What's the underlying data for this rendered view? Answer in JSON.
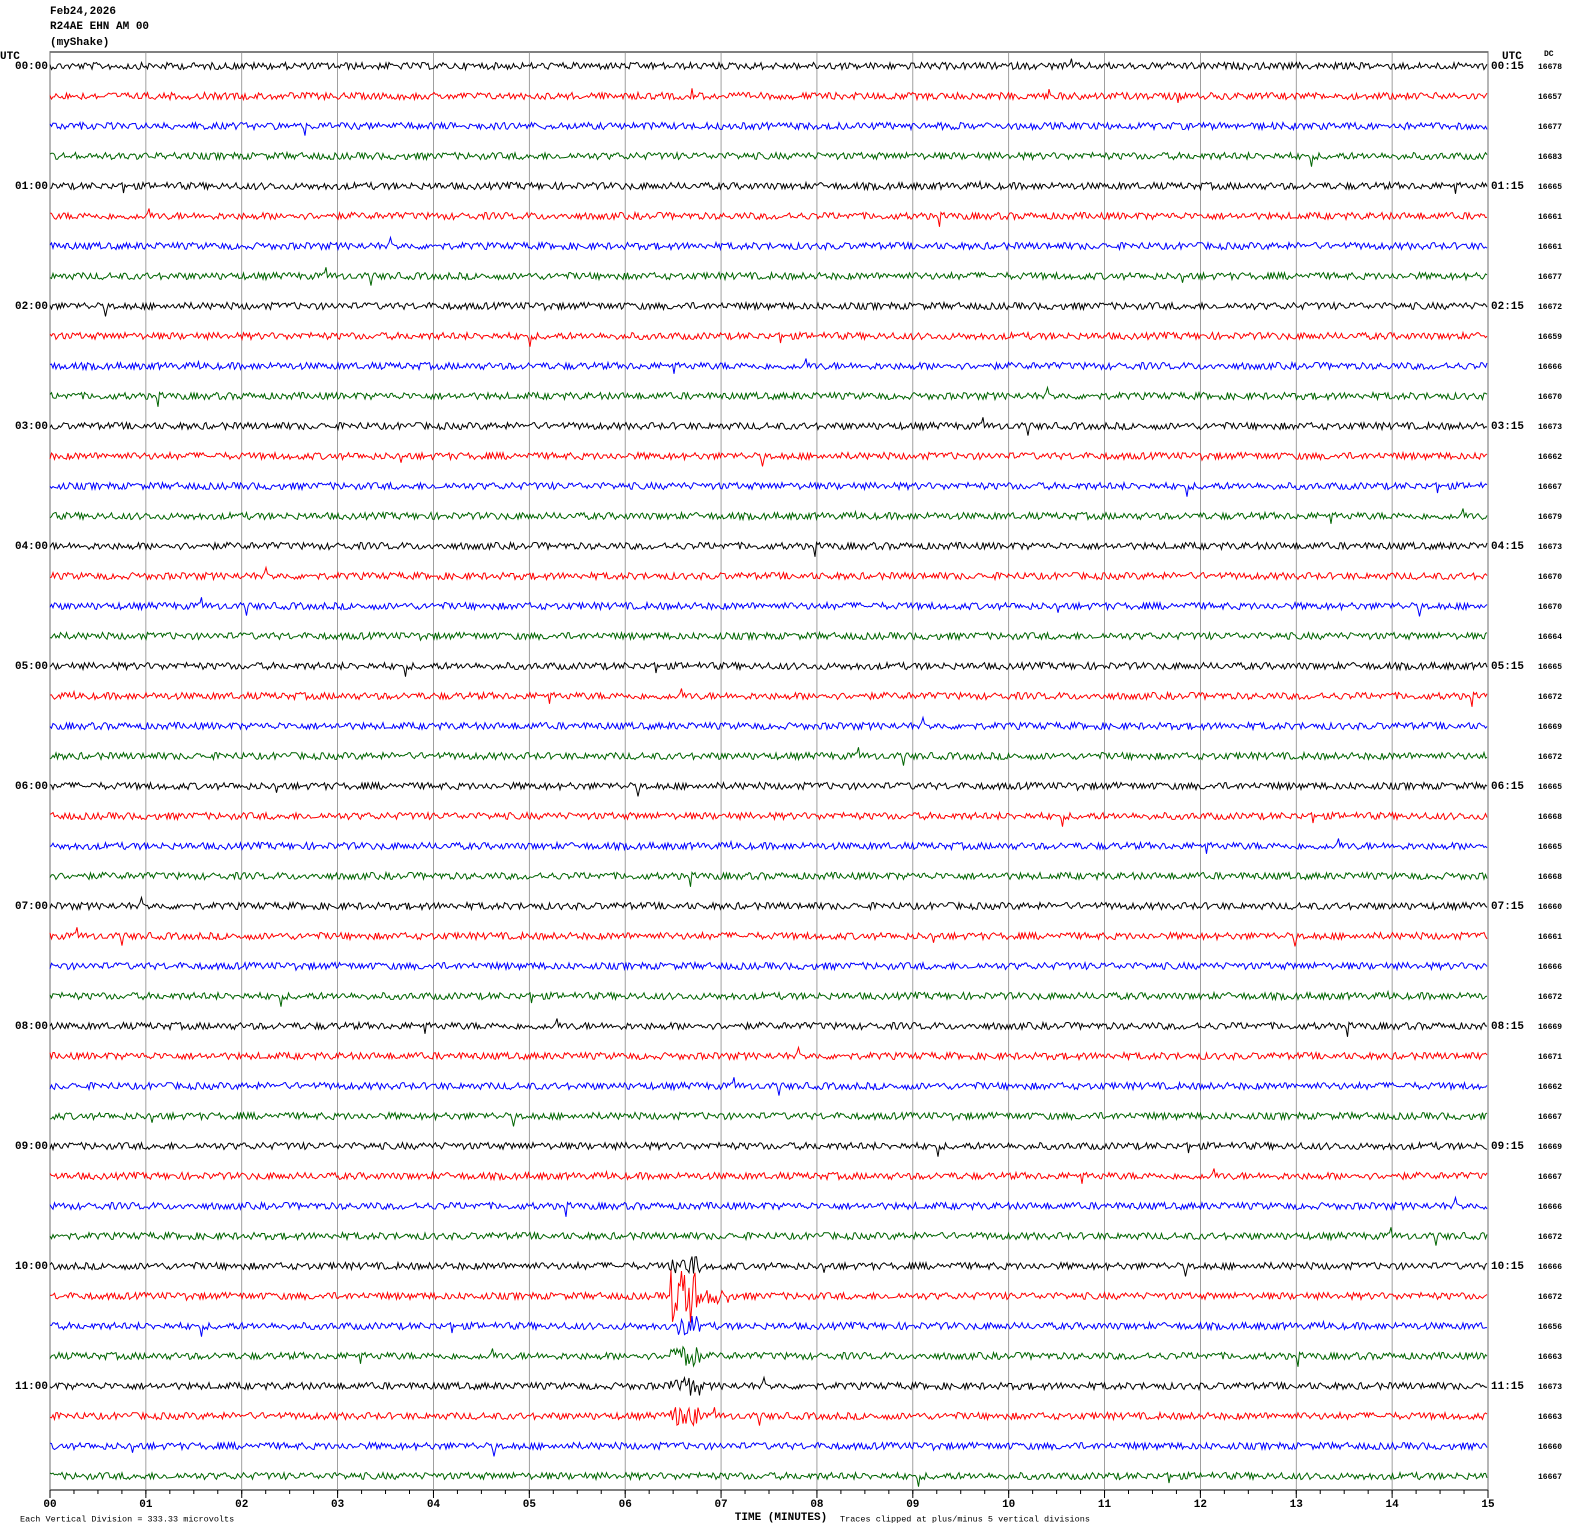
{
  "header": {
    "date": "Feb24,2026",
    "station": "R24AE EHN AM 00",
    "network": "(myShake)"
  },
  "left_axis_title": "UTC",
  "right_axis_title": "UTC",
  "dc_title": "DC",
  "left_labels": [
    "00:00",
    "01:00",
    "02:00",
    "03:00",
    "04:00",
    "05:00",
    "06:00",
    "07:00",
    "08:00",
    "09:00",
    "10:00",
    "11:00"
  ],
  "right_labels": [
    "00:15",
    "01:15",
    "02:15",
    "03:15",
    "04:15",
    "05:15",
    "06:15",
    "07:15",
    "08:15",
    "09:15",
    "10:15",
    "11:15"
  ],
  "dc_values": [
    16678,
    16657,
    16677,
    16683,
    16665,
    16661,
    16661,
    16677,
    16672,
    16659,
    16666,
    16670,
    16673,
    16662,
    16667,
    16679,
    16673,
    16670,
    16670,
    16664,
    16665,
    16672,
    16669,
    16672,
    16665,
    16668,
    16665,
    16668,
    16660,
    16661,
    16666,
    16672,
    16669,
    16671,
    16662,
    16667,
    16669,
    16667,
    16666,
    16672,
    16666,
    16672,
    16656,
    16663,
    16673,
    16663,
    16660,
    16667
  ],
  "x_axis": {
    "title": "TIME (MINUTES)",
    "lim": [
      0,
      15
    ],
    "ticks": [
      {
        "value": 0,
        "label": "00"
      },
      {
        "value": 1,
        "label": "01"
      },
      {
        "value": 2,
        "label": "02"
      },
      {
        "value": 3,
        "label": "03"
      },
      {
        "value": 4,
        "label": "04"
      },
      {
        "value": 5,
        "label": "05"
      },
      {
        "value": 6,
        "label": "06"
      },
      {
        "value": 7,
        "label": "07"
      },
      {
        "value": 8,
        "label": "08"
      },
      {
        "value": 9,
        "label": "09"
      },
      {
        "value": 10,
        "label": "10"
      },
      {
        "value": 11,
        "label": "11"
      },
      {
        "value": 12,
        "label": "12"
      },
      {
        "value": 13,
        "label": "13"
      },
      {
        "value": 14,
        "label": "14"
      },
      15
    ]
  },
  "trace_colors": [
    "#000000",
    "#ff0000",
    "#0000ff",
    "#006400"
  ],
  "footer": {
    "scale": "Each Vertical Division =  333.33 microvolts",
    "clip": "Traces clipped at plus/minus 5 vertical divisions"
  }
}
